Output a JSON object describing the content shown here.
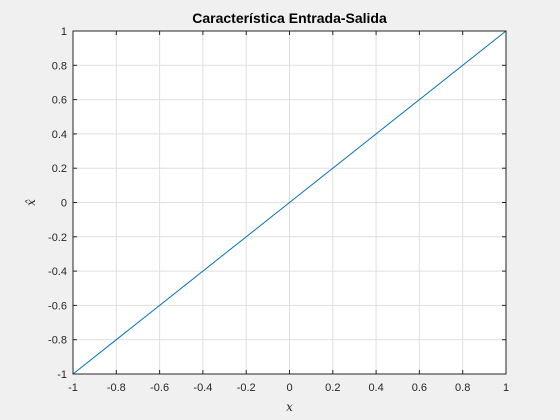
{
  "chart_data": {
    "type": "line",
    "title": "Característica Entrada-Salida",
    "xlabel": "x",
    "ylabel": "x̂",
    "xlim": [
      -1,
      1
    ],
    "ylim": [
      -1,
      1
    ],
    "xticks": [
      -1,
      -0.8,
      -0.6,
      -0.4,
      -0.2,
      0,
      0.2,
      0.4,
      0.6,
      0.8,
      1
    ],
    "xtick_labels": [
      "-1",
      "-0.8",
      "-0.6",
      "-0.4",
      "-0.2",
      "0",
      "0.2",
      "0.4",
      "0.6",
      "0.8",
      "1"
    ],
    "yticks": [
      -1,
      -0.8,
      -0.6,
      -0.4,
      -0.2,
      0,
      0.2,
      0.4,
      0.6,
      0.8,
      1
    ],
    "ytick_labels": [
      "-1",
      "-0.8",
      "-0.6",
      "-0.4",
      "-0.2",
      "0",
      "0.2",
      "0.4",
      "0.6",
      "0.8",
      "1"
    ],
    "grid": true,
    "series": [
      {
        "x": [
          -1,
          1
        ],
        "y": [
          -1,
          1
        ],
        "color": "#0072bd"
      }
    ]
  }
}
